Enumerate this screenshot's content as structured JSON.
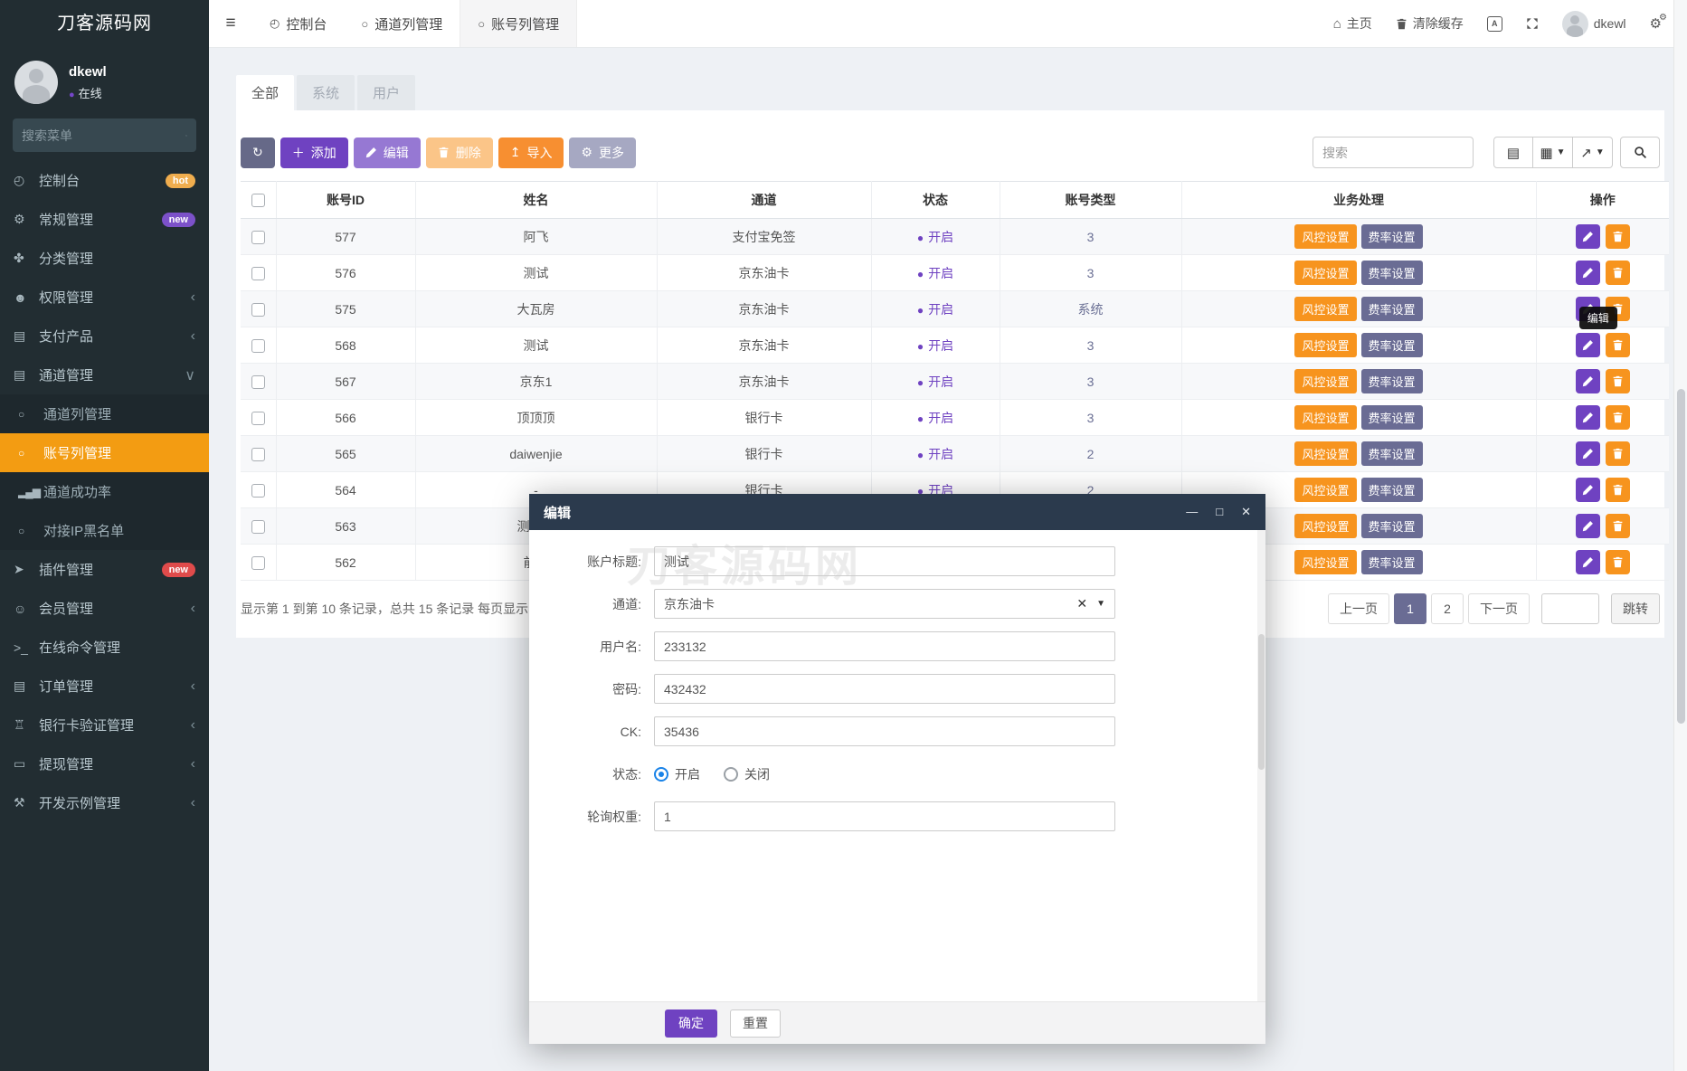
{
  "brand": {
    "title": "刀客源码网"
  },
  "user": {
    "name": "dkewl",
    "status": "在线"
  },
  "sidebar": {
    "search_placeholder": "搜索菜单",
    "items": [
      {
        "key": "dashboard",
        "label": "控制台",
        "icon": "dashboard-icon",
        "badge": {
          "text": "hot",
          "color": "#f0ad4e"
        }
      },
      {
        "key": "general",
        "label": "常规管理",
        "icon": "gears-icon",
        "badge": {
          "text": "new",
          "color": "#7c51c9"
        }
      },
      {
        "key": "category",
        "label": "分类管理",
        "icon": "leaf-icon"
      },
      {
        "key": "permission",
        "label": "权限管理",
        "icon": "users-icon",
        "chevron": true
      },
      {
        "key": "pay-product",
        "label": "支付产品",
        "icon": "list-icon",
        "chevron": true
      },
      {
        "key": "channel",
        "label": "通道管理",
        "icon": "list-icon",
        "expanded": true,
        "children": [
          {
            "key": "channel-list",
            "label": "通道列管理",
            "icon": "circle-icon"
          },
          {
            "key": "account-list",
            "label": "账号列管理",
            "icon": "circle-icon",
            "active": true
          },
          {
            "key": "channel-success",
            "label": "通道成功率",
            "icon": "signal-icon"
          },
          {
            "key": "ip-blacklist",
            "label": "对接IP黑名单",
            "icon": "circle-icon"
          }
        ]
      },
      {
        "key": "plugin",
        "label": "插件管理",
        "icon": "rocket-icon",
        "badge": {
          "text": "new",
          "color": "#e04b4b"
        }
      },
      {
        "key": "member",
        "label": "会员管理",
        "icon": "user-circle-icon",
        "chevron": true
      },
      {
        "key": "online-command",
        "label": "在线命令管理",
        "icon": "terminal-icon"
      },
      {
        "key": "order",
        "label": "订单管理",
        "icon": "list-icon",
        "chevron": true
      },
      {
        "key": "bankcard",
        "label": "银行卡验证管理",
        "icon": "bank-icon",
        "chevron": true
      },
      {
        "key": "withdraw",
        "label": "提现管理",
        "icon": "card-icon",
        "chevron": true
      },
      {
        "key": "dev-example",
        "label": "开发示例管理",
        "icon": "wrench-icon",
        "chevron": true
      }
    ]
  },
  "navbar": {
    "tabs": [
      {
        "key": "dashboard",
        "label": "控制台",
        "icon": "dashboard-icon"
      },
      {
        "key": "channel-list",
        "label": "通道列管理",
        "icon": "circle-icon"
      },
      {
        "key": "account-list",
        "label": "账号列管理",
        "icon": "circle-icon",
        "active": true
      }
    ],
    "home_label": "主页",
    "clear_cache_label": "清除缓存",
    "username": "dkewl"
  },
  "filter_tabs": [
    "全部",
    "系统",
    "用户"
  ],
  "toolbar": {
    "buttons": [
      {
        "key": "refresh",
        "label": "",
        "icon": "refresh-icon"
      },
      {
        "key": "add",
        "label": "添加",
        "icon": "plus-icon"
      },
      {
        "key": "edit",
        "label": "编辑",
        "icon": "pencil-icon"
      },
      {
        "key": "delete",
        "label": "删除",
        "icon": "trash-icon"
      },
      {
        "key": "import",
        "label": "导入",
        "icon": "upload-icon"
      },
      {
        "key": "more",
        "label": "更多",
        "icon": "gear-icon"
      }
    ],
    "search_placeholder": "搜索"
  },
  "table": {
    "columns": [
      "账号ID",
      "姓名",
      "通道",
      "状态",
      "账号类型",
      "业务处理",
      "操作"
    ],
    "badge_risk": "风控设置",
    "badge_rate": "费率设置",
    "rows": [
      {
        "id": "577",
        "name": "阿飞",
        "channel": "支付宝免签",
        "status": "开启",
        "type": "3"
      },
      {
        "id": "576",
        "name": "测试",
        "channel": "京东油卡",
        "status": "开启",
        "type": "3"
      },
      {
        "id": "575",
        "name": "大瓦房",
        "channel": "京东油卡",
        "status": "开启",
        "type": "系统",
        "tooltip": true
      },
      {
        "id": "568",
        "name": "测试",
        "channel": "京东油卡",
        "status": "开启",
        "type": "3"
      },
      {
        "id": "567",
        "name": "京东1",
        "channel": "京东油卡",
        "status": "开启",
        "type": "3"
      },
      {
        "id": "566",
        "name": "顶顶顶",
        "channel": "银行卡",
        "status": "开启",
        "type": "3"
      },
      {
        "id": "565",
        "name": "daiwenjie",
        "channel": "银行卡",
        "status": "开启",
        "type": "2"
      },
      {
        "id": "564",
        "name": "-",
        "channel": "银行卡",
        "status": "开启",
        "type": "2"
      },
      {
        "id": "563",
        "name": "测试支",
        "channel": "",
        "status": "",
        "type": ""
      },
      {
        "id": "562",
        "name": "前台",
        "channel": "",
        "status": "",
        "type": ""
      }
    ],
    "footer_text": "显示第 1 到第 10 条记录，总共 15 条记录 每页显示",
    "pagination": {
      "prev": "上一页",
      "pages": [
        "1",
        "2"
      ],
      "active": "1",
      "next": "下一页",
      "jump": "跳转"
    }
  },
  "tooltip": {
    "text": "编辑"
  },
  "modal": {
    "title": "编辑",
    "watermark": "刀客源码网",
    "fields": [
      {
        "key": "account-title",
        "label": "账户标题:",
        "type": "text",
        "value": "测试"
      },
      {
        "key": "channel",
        "label": "通道:",
        "type": "select",
        "value": "京东油卡"
      },
      {
        "key": "username",
        "label": "用户名:",
        "type": "text",
        "value": "233132"
      },
      {
        "key": "password",
        "label": "密码:",
        "type": "text",
        "value": "432432"
      },
      {
        "key": "ck",
        "label": "CK:",
        "type": "text",
        "value": "35436"
      },
      {
        "key": "status",
        "label": "状态:",
        "type": "radio",
        "options": [
          {
            "label": "开启",
            "checked": true
          },
          {
            "label": "关闭",
            "checked": false
          }
        ]
      },
      {
        "key": "poll-weight",
        "label": "轮询权重:",
        "type": "text",
        "value": "1"
      }
    ],
    "buttons": {
      "ok": "确定",
      "reset": "重置"
    }
  },
  "colors": {
    "purple": "#6f42c1",
    "orange": "#f7941e",
    "slate": "#6a6c94",
    "sidebar_active": "#f39c12",
    "status_open": "#6f42c1",
    "radio_blue": "#1a83e8"
  }
}
